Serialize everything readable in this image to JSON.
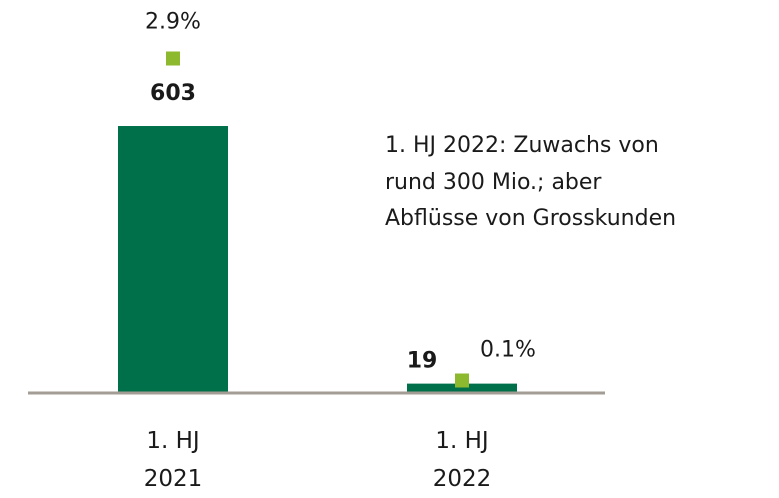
{
  "chart_data": {
    "type": "bar",
    "categories": [
      "1. HJ 2021",
      "1. HJ 2022"
    ],
    "series": [
      {
        "color": "#00704a",
        "values": [
          603,
          19
        ]
      },
      {
        "color": "#8db92e",
        "values": [
          2.9,
          0.1
        ],
        "value_labels": [
          "2.9%",
          "0.1%"
        ],
        "axis": "y2"
      }
    ],
    "ylim": [
      0,
      730
    ],
    "y2lim": [
      0,
      2.8
    ],
    "annotation": [
      "1. HJ 2022: Zuwachs von",
      "rund 300 Mio.; aber",
      "Abflüsse von Grosskunden"
    ]
  }
}
